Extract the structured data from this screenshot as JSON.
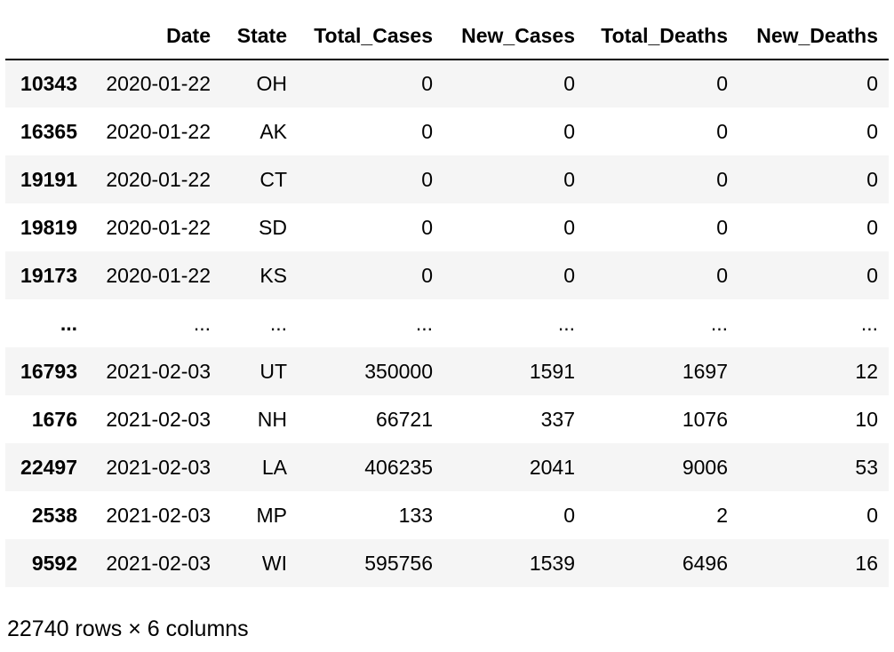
{
  "columns": {
    "index": "",
    "date": "Date",
    "state": "State",
    "total_cases": "Total_Cases",
    "new_cases": "New_Cases",
    "total_deaths": "Total_Deaths",
    "new_deaths": "New_Deaths"
  },
  "rows": [
    {
      "index": "10343",
      "date": "2020-01-22",
      "state": "OH",
      "total_cases": "0",
      "new_cases": "0",
      "total_deaths": "0",
      "new_deaths": "0"
    },
    {
      "index": "16365",
      "date": "2020-01-22",
      "state": "AK",
      "total_cases": "0",
      "new_cases": "0",
      "total_deaths": "0",
      "new_deaths": "0"
    },
    {
      "index": "19191",
      "date": "2020-01-22",
      "state": "CT",
      "total_cases": "0",
      "new_cases": "0",
      "total_deaths": "0",
      "new_deaths": "0"
    },
    {
      "index": "19819",
      "date": "2020-01-22",
      "state": "SD",
      "total_cases": "0",
      "new_cases": "0",
      "total_deaths": "0",
      "new_deaths": "0"
    },
    {
      "index": "19173",
      "date": "2020-01-22",
      "state": "KS",
      "total_cases": "0",
      "new_cases": "0",
      "total_deaths": "0",
      "new_deaths": "0"
    },
    {
      "index": "...",
      "date": "...",
      "state": "...",
      "total_cases": "...",
      "new_cases": "...",
      "total_deaths": "...",
      "new_deaths": "..."
    },
    {
      "index": "16793",
      "date": "2021-02-03",
      "state": "UT",
      "total_cases": "350000",
      "new_cases": "1591",
      "total_deaths": "1697",
      "new_deaths": "12"
    },
    {
      "index": "1676",
      "date": "2021-02-03",
      "state": "NH",
      "total_cases": "66721",
      "new_cases": "337",
      "total_deaths": "1076",
      "new_deaths": "10"
    },
    {
      "index": "22497",
      "date": "2021-02-03",
      "state": "LA",
      "total_cases": "406235",
      "new_cases": "2041",
      "total_deaths": "9006",
      "new_deaths": "53"
    },
    {
      "index": "2538",
      "date": "2021-02-03",
      "state": "MP",
      "total_cases": "133",
      "new_cases": "0",
      "total_deaths": "2",
      "new_deaths": "0"
    },
    {
      "index": "9592",
      "date": "2021-02-03",
      "state": "WI",
      "total_cases": "595756",
      "new_cases": "1539",
      "total_deaths": "6496",
      "new_deaths": "16"
    }
  ],
  "footer": "22740 rows × 6 columns",
  "colors": {
    "stripe": "#f5f5f5",
    "header_rule": "#000000"
  }
}
